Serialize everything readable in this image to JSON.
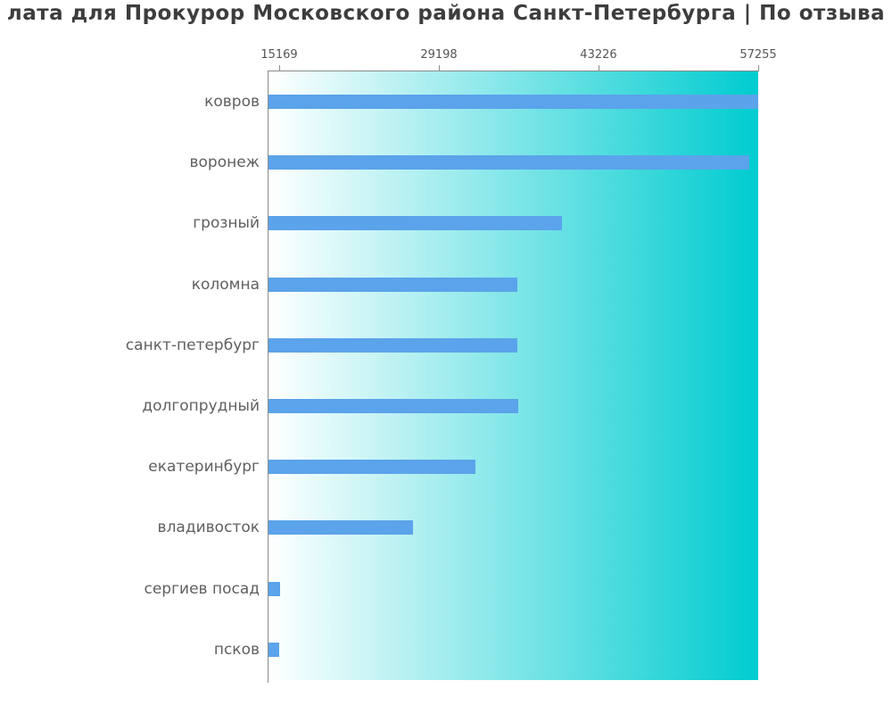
{
  "title": "лата для Прокурор Московского района Санкт-Петербурга | По отзыва",
  "colors": {
    "bar": "#5ba3ea",
    "gradient_start": "#ffffff",
    "gradient_end": "#00ccd0",
    "axis": "#8a8a8a",
    "tick_label": "#555555",
    "category_label": "#606060",
    "title": "#3d3d3d"
  },
  "chart_data": {
    "type": "bar",
    "orientation": "horizontal",
    "title": "лата для Прокурор Московского района Санкт-Петербурга | По отзыва",
    "categories": [
      "ковров",
      "воронеж",
      "грозный",
      "коломна",
      "санкт-петербург",
      "долгопрудный",
      "екатеринбург",
      "владивосток",
      "сергиев посад",
      "псков"
    ],
    "values": [
      57255,
      56500,
      40000,
      36100,
      36100,
      36200,
      32400,
      26900,
      15250,
      15169
    ],
    "xticks": [
      15169,
      29198,
      43226,
      57255
    ],
    "xlim": [
      14228,
      57255
    ],
    "xlabel": "",
    "ylabel": "",
    "grid": false,
    "legend": false,
    "background": "white-to-teal horizontal gradient inside plot, ticks on top axis"
  }
}
